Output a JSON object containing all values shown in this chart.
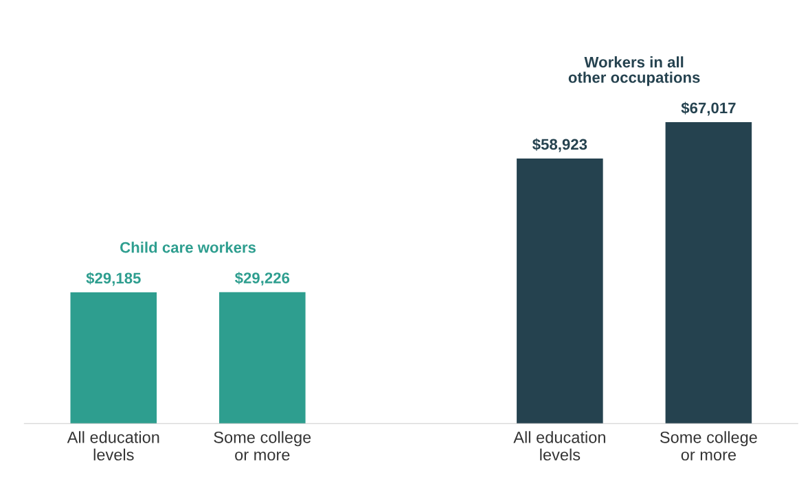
{
  "chart_data": {
    "type": "bar",
    "categories": [
      "All education\nlevels",
      "Some college\nor more",
      null,
      "All education\nlevels",
      "Some college\nor more"
    ],
    "values": [
      29185,
      29226,
      null,
      58923,
      67017
    ],
    "colors": [
      "#2e9e8f",
      "#2e9e8f",
      null,
      "#25424f",
      "#25424f"
    ],
    "value_labels": [
      "$29,185",
      "$29,226",
      null,
      "$58,923",
      "$67,017"
    ],
    "annotations": [
      "Child care workers",
      "Workers in all\nother occupations"
    ],
    "grid": false
  }
}
